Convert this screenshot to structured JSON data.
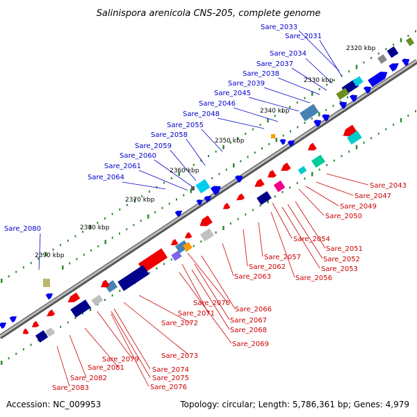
{
  "title": "Salinispora arenicola CNS-205, complete genome",
  "accession": "Accession: NC_009953",
  "summary": "Topology: circular; Length: 5,786,361 bp; Genes: 4,979",
  "colors": {
    "plus_label": "#0000cc",
    "minus_label": "#cc0000",
    "backbone": "#999999",
    "tick": "#2e8b2e"
  },
  "scale_labels": [
    "2320 kbp",
    "2330 kbp",
    "2340 kbp",
    "2350 kbp",
    "2360 kbp",
    "2370 kbp",
    "2380 kbp",
    "2390 kbp"
  ],
  "plus_genes": [
    "Sare_2033",
    "Sare_2031",
    "Sare_2034",
    "Sare_2037",
    "Sare_2038",
    "Sare_2039",
    "Sare_2045",
    "Sare_2046",
    "Sare_2048",
    "Sare_2055",
    "Sare_2058",
    "Sare_2059",
    "Sare_2060",
    "Sare_2061",
    "Sare_2064",
    "Sare_2080"
  ],
  "minus_genes": [
    "Sare_2043",
    "Sare_2047",
    "Sare_2049",
    "Sare_2050",
    "Sare_2054",
    "Sare_2051",
    "Sare_2052",
    "Sare_2053",
    "Sare_2057",
    "Sare_2056",
    "Sare_2062",
    "Sare_2063",
    "Sare_2070",
    "Sare_2066",
    "Sare_2071",
    "Sare_2067",
    "Sare_2068",
    "Sare_2069",
    "Sare_2072",
    "Sare_2073",
    "Sare_2079",
    "Sare_2074",
    "Sare_2081",
    "Sare_2075",
    "Sare_2082",
    "Sare_2076",
    "Sare_2083"
  ]
}
